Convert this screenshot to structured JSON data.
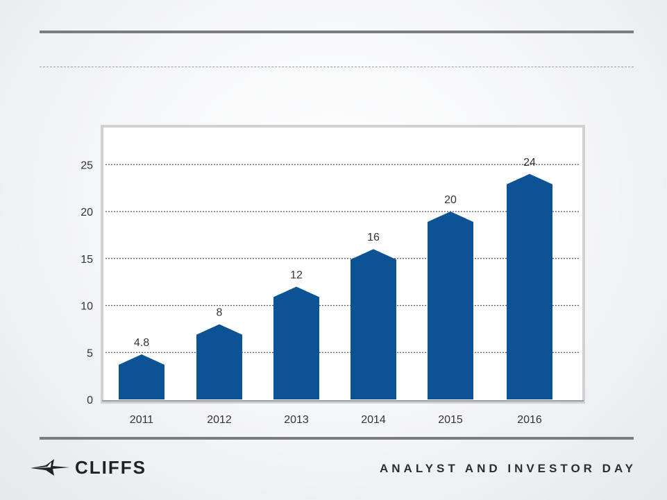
{
  "header": {
    "title": ""
  },
  "chart_data": {
    "type": "bar",
    "categories": [
      "2011",
      "2012",
      "2013",
      "2014",
      "2015",
      "2016"
    ],
    "values": [
      4.8,
      8,
      12,
      16,
      20,
      24
    ],
    "value_labels": [
      "4.8",
      "8",
      "12",
      "16",
      "20",
      "24"
    ],
    "title": "",
    "xlabel": "",
    "ylabel": "",
    "ylim": [
      0,
      29
    ],
    "yticks": [
      0,
      5,
      10,
      15,
      20,
      25
    ],
    "grid": "horizontal-dotted",
    "bar_shape": "pentagon-arrow",
    "colors": {
      "bar": "#0b5394",
      "panel_border": "#c8cacd",
      "grid": "#555555",
      "text": "#333333"
    }
  },
  "footer": {
    "logo_text": "CLIFFS",
    "event_name": "ANALYST AND INVESTOR DAY",
    "logo_color": "#1f2124"
  }
}
